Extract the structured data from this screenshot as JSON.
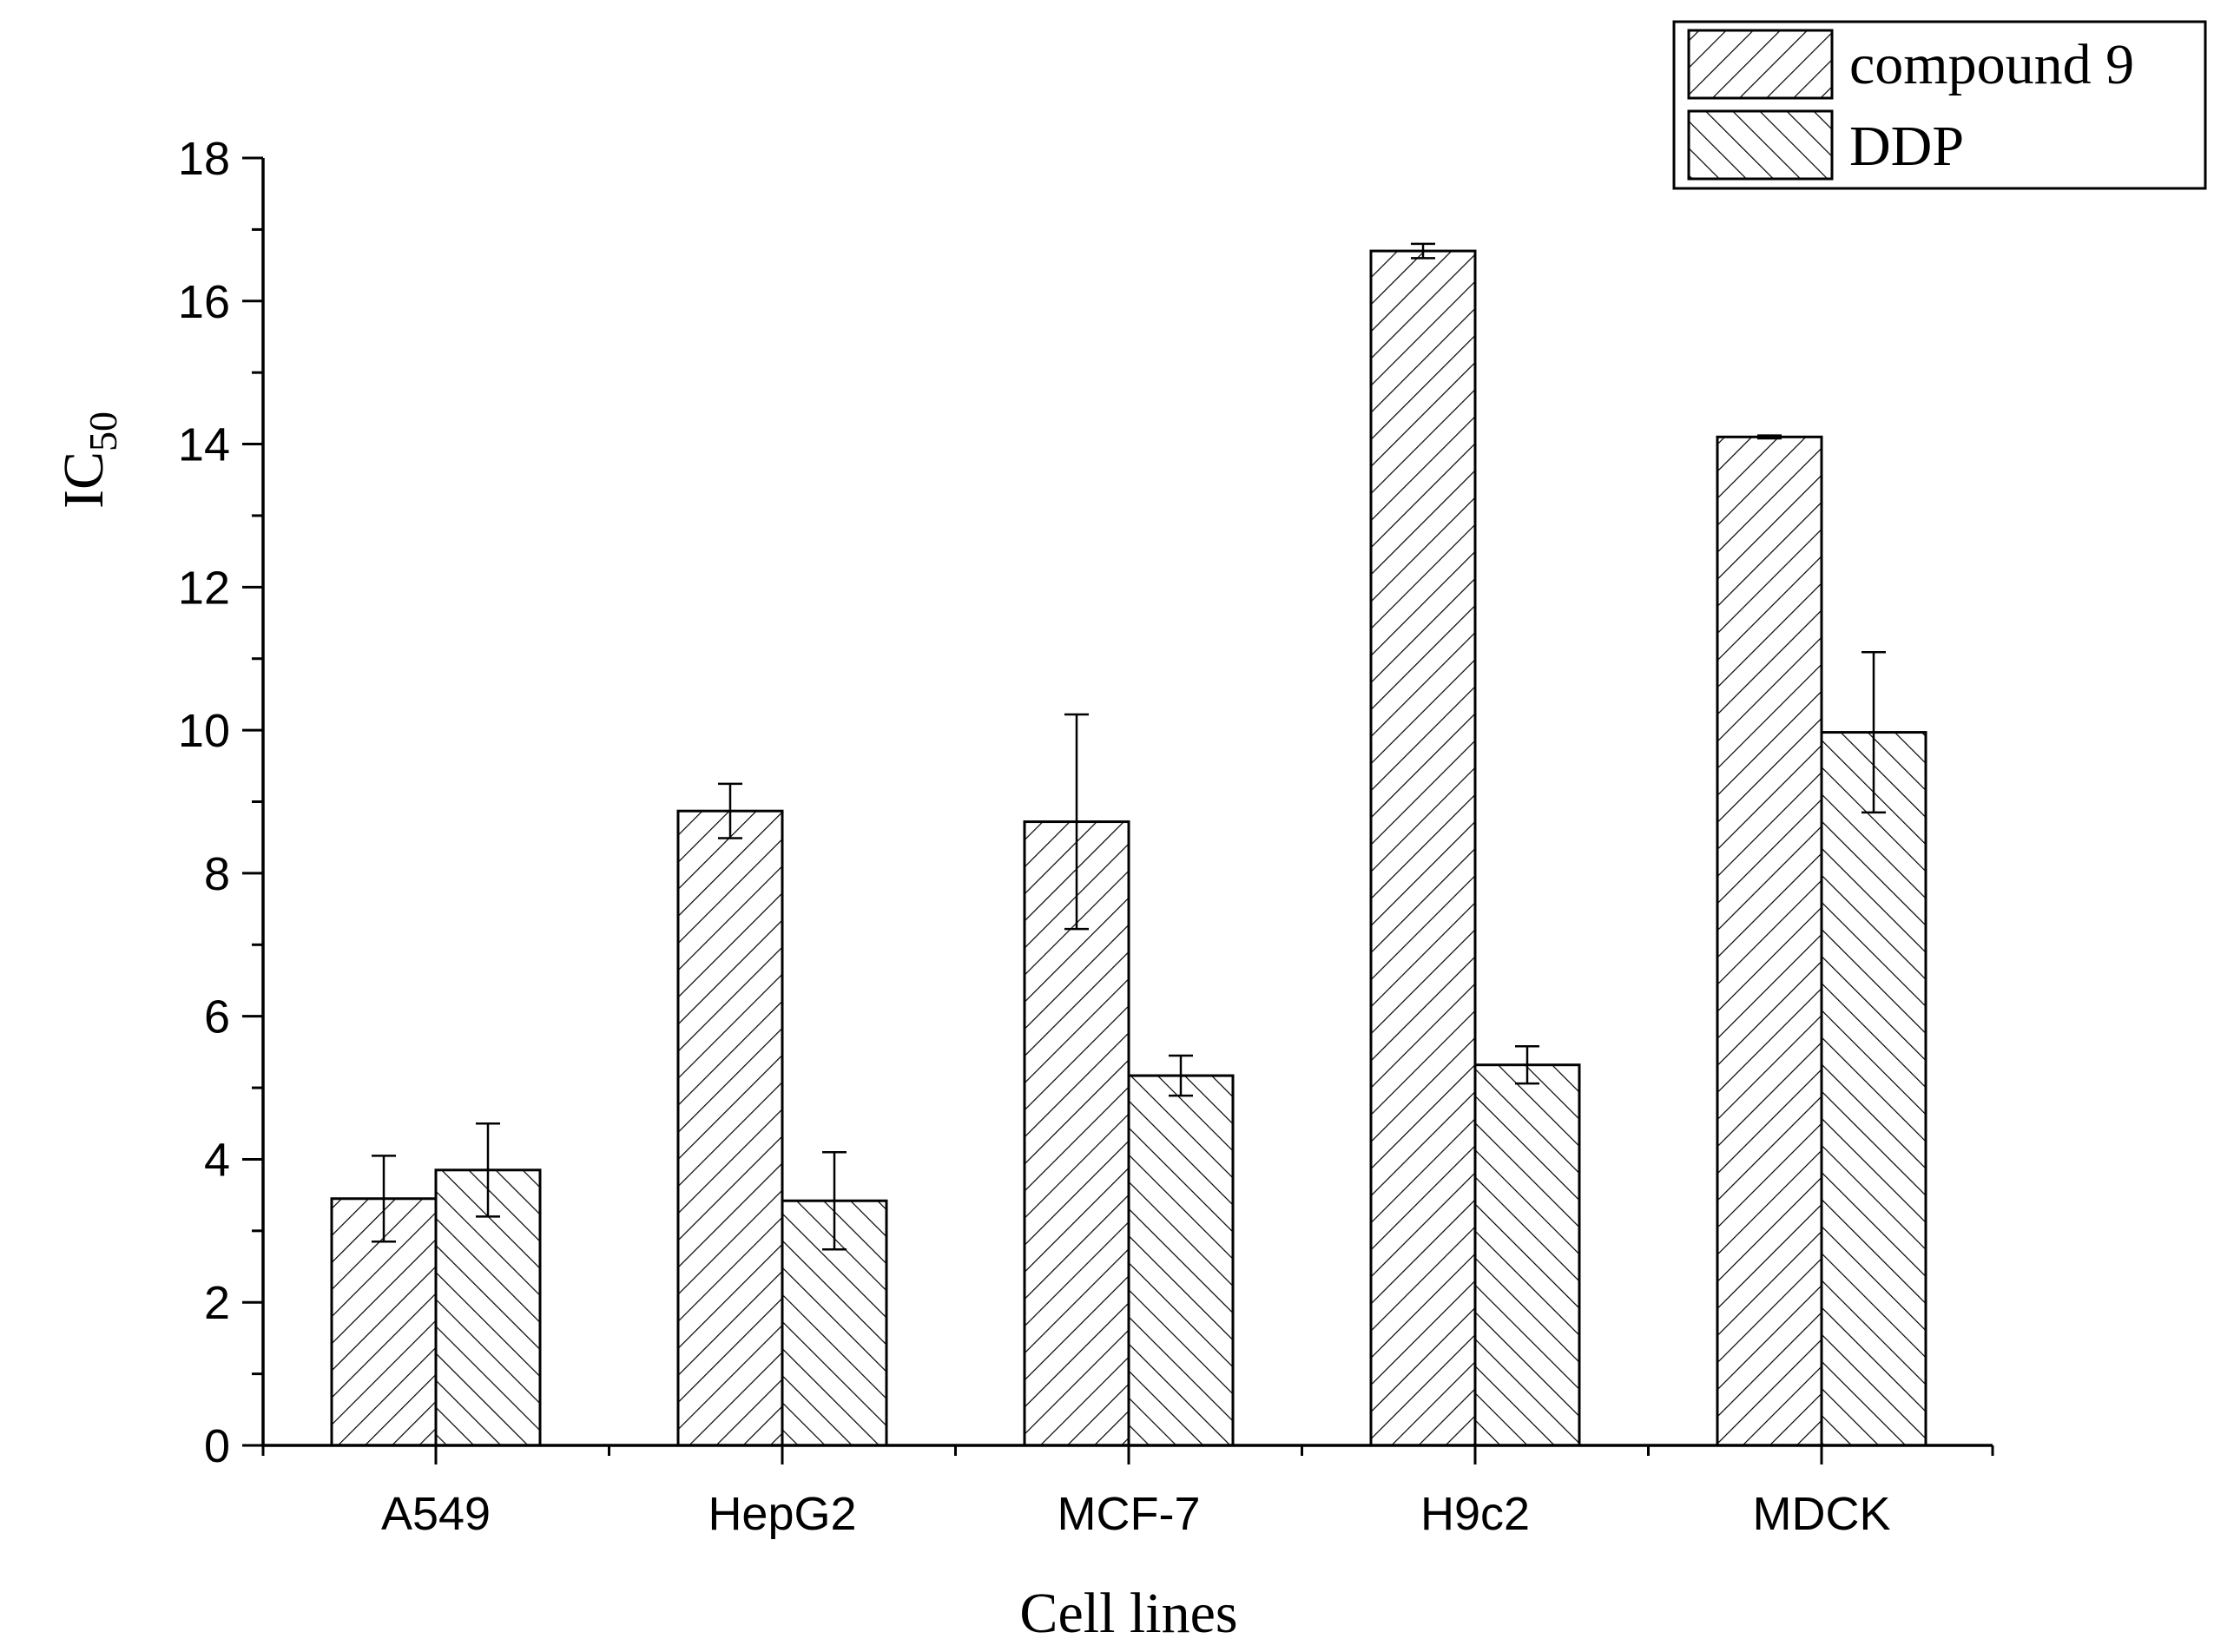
{
  "chart_data": {
    "type": "bar",
    "title": "",
    "xlabel": "Cell lines",
    "ylabel": "IC",
    "ylabel_subscript": "50",
    "ylim": [
      0,
      18
    ],
    "yticks": [
      0,
      2,
      4,
      6,
      8,
      10,
      12,
      14,
      16,
      18
    ],
    "categories": [
      "A549",
      "HepG2",
      "MCF-7",
      "H9c2",
      "MDCK"
    ],
    "legend_position": "top-right",
    "series": [
      {
        "name": "compound 9",
        "pattern": "diagonal-up",
        "values": [
          3.45,
          8.87,
          8.72,
          16.7,
          14.1
        ],
        "errors": [
          0.6,
          0.38,
          1.5,
          0.1,
          0.02
        ]
      },
      {
        "name": "DDP",
        "pattern": "diagonal-down",
        "values": [
          3.85,
          3.42,
          5.17,
          5.32,
          9.97
        ],
        "errors": [
          0.65,
          0.68,
          0.28,
          0.26,
          1.12
        ]
      }
    ],
    "colors": {
      "stroke": "#000000",
      "fill": "#ffffff"
    }
  }
}
